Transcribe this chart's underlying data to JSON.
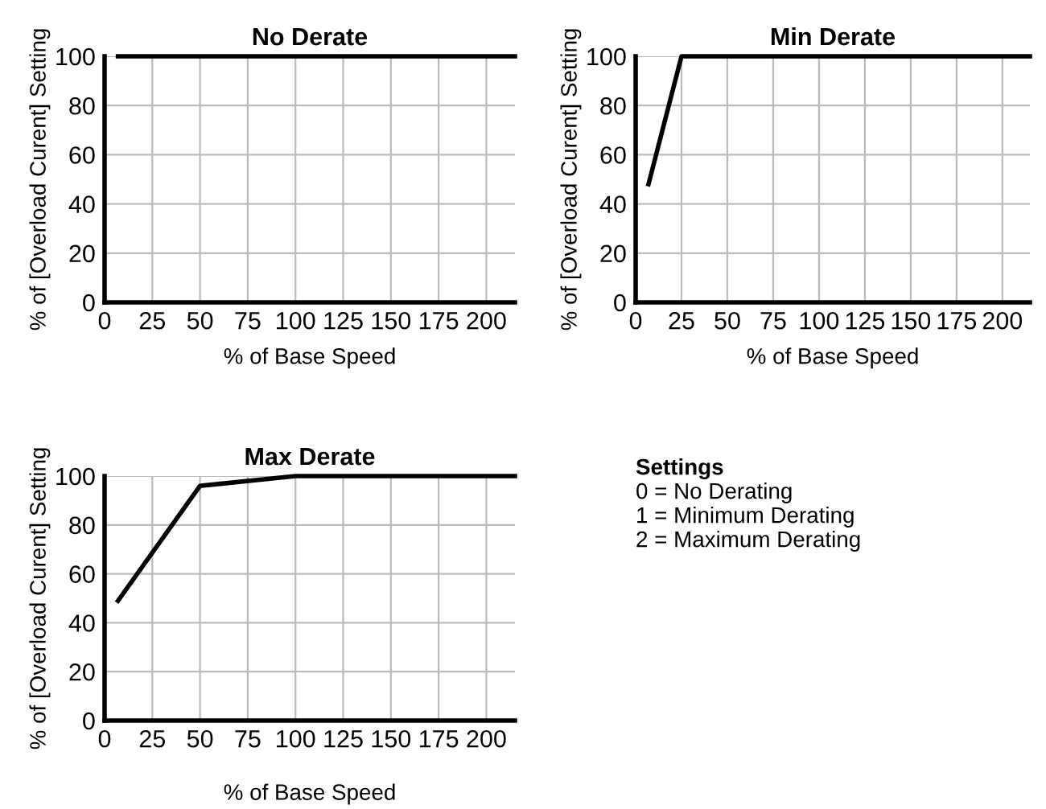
{
  "chart_data": [
    {
      "type": "line",
      "title": "No Derate",
      "xlabel": "% of Base Speed",
      "ylabel": "% of [Overload Curent] Setting",
      "x": [
        7,
        215
      ],
      "series": [
        {
          "color": "#000000",
          "values": [
            100,
            100
          ]
        }
      ],
      "xlim": [
        0,
        215
      ],
      "xticks": [
        0,
        25,
        50,
        75,
        100,
        125,
        150,
        175,
        200
      ],
      "ylim": [
        0,
        100
      ],
      "yticks": [
        0,
        20,
        40,
        60,
        80,
        100
      ],
      "grid": true,
      "marker": "none",
      "line_style": "solid",
      "legend": false
    },
    {
      "type": "line",
      "title": "Min Derate",
      "xlabel": "% of Base Speed",
      "ylabel": "% of [Overload Curent] Setting",
      "x": [
        7,
        25,
        215
      ],
      "series": [
        {
          "color": "#000000",
          "values": [
            48,
            100,
            100
          ]
        }
      ],
      "xlim": [
        0,
        215
      ],
      "xticks": [
        0,
        25,
        50,
        75,
        100,
        125,
        150,
        175,
        200
      ],
      "ylim": [
        0,
        100
      ],
      "yticks": [
        0,
        20,
        40,
        60,
        80,
        100
      ],
      "grid": true,
      "marker": "none",
      "line_style": "solid",
      "legend": false
    },
    {
      "type": "line",
      "title": "Max Derate",
      "xlabel": "% of Base Speed",
      "ylabel": "% of [Overload Curent] Setting",
      "x": [
        7,
        50,
        100,
        215
      ],
      "series": [
        {
          "color": "#000000",
          "values": [
            49,
            96,
            100,
            100
          ]
        }
      ],
      "xlim": [
        0,
        215
      ],
      "xticks": [
        0,
        25,
        50,
        75,
        100,
        125,
        150,
        175,
        200
      ],
      "ylim": [
        0,
        100
      ],
      "yticks": [
        0,
        20,
        40,
        60,
        80,
        100
      ],
      "grid": true,
      "marker": "none",
      "line_style": "solid",
      "legend": false
    },
    {
      "type": "other",
      "title": "Settings",
      "annotations": [
        "0 = No Derating",
        "1 = Minimum Derating",
        "2 = Maximum Derating"
      ]
    }
  ]
}
